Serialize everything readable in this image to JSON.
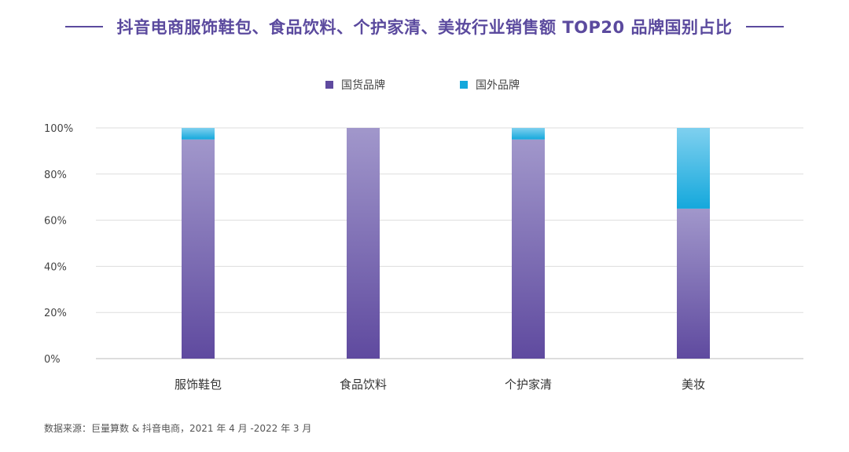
{
  "title": "抖音电商服饰鞋包、食品饮料、个护家清、美妆行业销售额 TOP20 品牌国别占比",
  "source_note": "数据来源：巨量算数 & 抖音电商，2021 年 4 月 -2022 年 3 月",
  "colors": {
    "accent": "#5b4a9e",
    "domestic_top": "#a197cb",
    "domestic_bottom": "#5f4a9f",
    "foreign_top": "#7fd0ef",
    "foreign_bottom": "#14a8dc",
    "grid": "#dddddd",
    "text": "#444444"
  },
  "chart_data": {
    "type": "bar",
    "stacked": true,
    "categories": [
      "服饰鞋包",
      "食品饮料",
      "个护家清",
      "美妆"
    ],
    "series": [
      {
        "name": "国货品牌",
        "values": [
          95,
          100,
          95,
          65
        ]
      },
      {
        "name": "国外品牌",
        "values": [
          5,
          0,
          5,
          35
        ]
      }
    ],
    "yticks": [
      "0%",
      "20%",
      "40%",
      "60%",
      "80%",
      "100%"
    ],
    "ylim": [
      0,
      100
    ],
    "grid": true,
    "legend_position": "top-center"
  }
}
